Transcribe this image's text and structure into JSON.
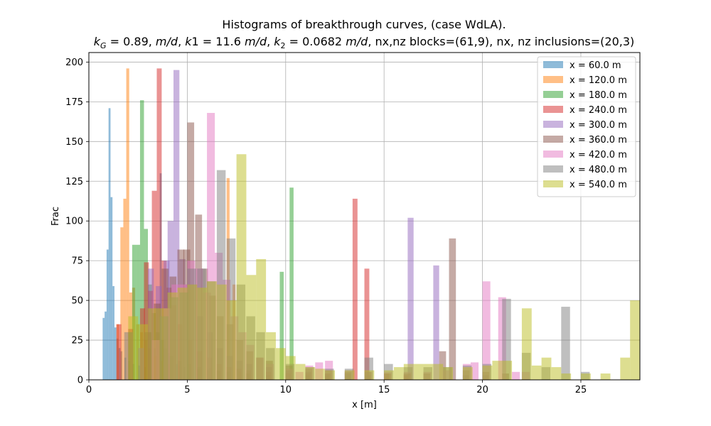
{
  "chart_data": {
    "type": "histogram",
    "title": "Histograms of breakthrough curves, (case WdLA).",
    "subtitle": "k_G = 0.89, m/d, k1 = 11.6 m/d, k_2 = 0.0682 m/d, nx,nz blocks=(61,9), nx, nz inclusions=(20,3)",
    "subtitle_parts": {
      "kG_sym": "k",
      "kG_sub": "G",
      "kG_val": " = 0.89, ",
      "md": "m/d",
      "sep1": ", ",
      "k1_sym": "k",
      "k1_val": "1 = 11.6 ",
      "sep2": ", ",
      "k2_sym": "k",
      "k2_sub": "2",
      "k2_val": " = 0.0682 ",
      "tail": ", nx,nz blocks=(61,9), nx, nz inclusions=(20,3)"
    },
    "xlabel": "x [m]",
    "ylabel": "Frac",
    "xlim": [
      0,
      28
    ],
    "ylim": [
      0,
      206
    ],
    "xticks": [
      0,
      5,
      10,
      15,
      20,
      25
    ],
    "yticks": [
      0,
      25,
      50,
      75,
      100,
      125,
      150,
      175,
      200
    ],
    "grid": true,
    "legend_position": "top-right",
    "alpha": 0.5,
    "series": [
      {
        "name": "x = 60.0 m",
        "color": "#1f77b4",
        "bin_width": 0.1,
        "bars": [
          [
            0.7,
            39
          ],
          [
            0.8,
            43
          ],
          [
            0.9,
            82
          ],
          [
            1.0,
            171
          ],
          [
            1.1,
            115
          ],
          [
            1.2,
            59
          ],
          [
            1.3,
            33
          ],
          [
            1.4,
            26
          ],
          [
            1.5,
            20
          ],
          [
            1.6,
            18
          ],
          [
            1.8,
            14
          ],
          [
            2.0,
            12
          ],
          [
            2.2,
            10
          ],
          [
            2.5,
            9
          ],
          [
            2.8,
            8
          ],
          [
            3.1,
            30
          ],
          [
            3.3,
            20
          ],
          [
            3.6,
            130
          ],
          [
            3.8,
            25
          ],
          [
            4.0,
            17
          ],
          [
            4.4,
            10
          ],
          [
            4.8,
            8
          ]
        ]
      },
      {
        "name": "x = 120.0 m",
        "color": "#ff7f0e",
        "bin_width": 0.15,
        "bars": [
          [
            1.4,
            35
          ],
          [
            1.6,
            96
          ],
          [
            1.75,
            114
          ],
          [
            1.9,
            196
          ],
          [
            2.05,
            55
          ],
          [
            2.2,
            58
          ],
          [
            2.4,
            35
          ],
          [
            2.6,
            30
          ],
          [
            2.8,
            25
          ],
          [
            3.0,
            20
          ],
          [
            3.3,
            15
          ],
          [
            3.6,
            12
          ],
          [
            4.0,
            10
          ],
          [
            4.5,
            9
          ],
          [
            5.0,
            8
          ],
          [
            5.5,
            7
          ],
          [
            6.0,
            6
          ],
          [
            6.5,
            6
          ],
          [
            7.0,
            127
          ],
          [
            7.3,
            60
          ],
          [
            7.6,
            5
          ],
          [
            8.0,
            4
          ]
        ]
      },
      {
        "name": "x = 180.0 m",
        "color": "#2ca02c",
        "bin_width": 0.2,
        "bars": [
          [
            2.0,
            30
          ],
          [
            2.2,
            85
          ],
          [
            2.4,
            85
          ],
          [
            2.6,
            176
          ],
          [
            2.8,
            95
          ],
          [
            3.0,
            60
          ],
          [
            3.2,
            42
          ],
          [
            3.4,
            30
          ],
          [
            3.6,
            25
          ],
          [
            3.8,
            20
          ],
          [
            4.1,
            15
          ],
          [
            4.5,
            12
          ],
          [
            5.0,
            10
          ],
          [
            5.5,
            8
          ],
          [
            6.0,
            7
          ],
          [
            6.5,
            6
          ],
          [
            7.0,
            5
          ],
          [
            8.0,
            4
          ],
          [
            9.0,
            3
          ],
          [
            9.7,
            68
          ],
          [
            10.2,
            121
          ],
          [
            11.0,
            3
          ],
          [
            12.0,
            3
          ]
        ]
      },
      {
        "name": "x = 240.0 m",
        "color": "#d62728",
        "bin_width": 0.25,
        "bars": [
          [
            1.4,
            35
          ],
          [
            2.0,
            32
          ],
          [
            2.6,
            45
          ],
          [
            2.8,
            74
          ],
          [
            3.0,
            56
          ],
          [
            3.2,
            119
          ],
          [
            3.45,
            196
          ],
          [
            3.7,
            75
          ],
          [
            3.95,
            58
          ],
          [
            4.2,
            47
          ],
          [
            4.5,
            35
          ],
          [
            5.0,
            25
          ],
          [
            5.5,
            18
          ],
          [
            6.0,
            14
          ],
          [
            6.5,
            10
          ],
          [
            7.0,
            8
          ],
          [
            7.5,
            7
          ],
          [
            8.0,
            6
          ],
          [
            9.0,
            5
          ],
          [
            10.0,
            4
          ],
          [
            11.0,
            4
          ],
          [
            12.0,
            4
          ],
          [
            13.4,
            114
          ],
          [
            14.0,
            70
          ],
          [
            15.0,
            4
          ],
          [
            16.0,
            3
          ]
        ]
      },
      {
        "name": "x = 300.0 m",
        "color": "#9467bd",
        "bin_width": 0.3,
        "bars": [
          [
            2.5,
            20
          ],
          [
            3.0,
            70
          ],
          [
            3.4,
            59
          ],
          [
            3.8,
            75
          ],
          [
            4.0,
            100
          ],
          [
            4.3,
            195
          ],
          [
            4.6,
            76
          ],
          [
            4.9,
            60
          ],
          [
            5.2,
            60
          ],
          [
            5.5,
            40
          ],
          [
            6.0,
            30
          ],
          [
            6.5,
            20
          ],
          [
            7.0,
            15
          ],
          [
            7.5,
            12
          ],
          [
            8.0,
            10
          ],
          [
            9.0,
            8
          ],
          [
            10.0,
            6
          ],
          [
            11.0,
            5
          ],
          [
            12.0,
            4
          ],
          [
            13.0,
            4
          ],
          [
            14.0,
            3
          ],
          [
            16.2,
            102
          ],
          [
            17.5,
            72
          ],
          [
            19.0,
            3
          ],
          [
            20.0,
            3
          ]
        ]
      },
      {
        "name": "x = 360.0 m",
        "color": "#8c564b",
        "bin_width": 0.35,
        "bars": [
          [
            2.8,
            30
          ],
          [
            3.3,
            48
          ],
          [
            3.7,
            70
          ],
          [
            4.1,
            65
          ],
          [
            4.5,
            82
          ],
          [
            4.8,
            82
          ],
          [
            5.0,
            162
          ],
          [
            5.4,
            104
          ],
          [
            5.7,
            70
          ],
          [
            6.1,
            53
          ],
          [
            6.5,
            40
          ],
          [
            7.0,
            35
          ],
          [
            7.5,
            25
          ],
          [
            8.0,
            18
          ],
          [
            8.5,
            14
          ],
          [
            9.0,
            12
          ],
          [
            10.0,
            9
          ],
          [
            11.0,
            7
          ],
          [
            12.0,
            6
          ],
          [
            13.0,
            5
          ],
          [
            14.0,
            5
          ],
          [
            15.0,
            4
          ],
          [
            16.0,
            4
          ],
          [
            17.0,
            4
          ],
          [
            17.8,
            18
          ],
          [
            18.3,
            89
          ],
          [
            19.0,
            6
          ],
          [
            20.0,
            5
          ],
          [
            21.0,
            4
          ]
        ]
      },
      {
        "name": "x = 420.0 m",
        "color": "#e377c2",
        "bin_width": 0.4,
        "bars": [
          [
            3.2,
            25
          ],
          [
            3.8,
            45
          ],
          [
            4.2,
            60
          ],
          [
            4.6,
            60
          ],
          [
            5.0,
            75
          ],
          [
            5.4,
            70
          ],
          [
            5.8,
            55
          ],
          [
            6.0,
            168
          ],
          [
            6.4,
            80
          ],
          [
            6.8,
            63
          ],
          [
            7.2,
            40
          ],
          [
            7.6,
            30
          ],
          [
            8.0,
            22
          ],
          [
            8.5,
            14
          ],
          [
            9.0,
            10
          ],
          [
            10.0,
            7
          ],
          [
            10.5,
            5
          ],
          [
            11.0,
            9
          ],
          [
            11.5,
            11
          ],
          [
            12.0,
            12
          ],
          [
            13.0,
            6
          ],
          [
            14.0,
            5
          ],
          [
            15.0,
            5
          ],
          [
            16.0,
            5
          ],
          [
            17.0,
            5
          ],
          [
            18.0,
            6
          ],
          [
            19.0,
            10
          ],
          [
            19.4,
            11
          ],
          [
            20.0,
            62
          ],
          [
            20.8,
            52
          ],
          [
            21.5,
            5
          ],
          [
            22.0,
            5
          ]
        ]
      },
      {
        "name": "x = 480.0 m",
        "color": "#7f7f7f",
        "bin_width": 0.45,
        "bars": [
          [
            1.8,
            30
          ],
          [
            3.6,
            40
          ],
          [
            4.1,
            52
          ],
          [
            4.6,
            55
          ],
          [
            5.0,
            70
          ],
          [
            5.5,
            70
          ],
          [
            6.0,
            62
          ],
          [
            6.5,
            132
          ],
          [
            7.0,
            89
          ],
          [
            7.5,
            60
          ],
          [
            8.0,
            40
          ],
          [
            8.5,
            30
          ],
          [
            9.0,
            20
          ],
          [
            10.0,
            10
          ],
          [
            11.0,
            8
          ],
          [
            12.0,
            7
          ],
          [
            13.0,
            7
          ],
          [
            14.0,
            14
          ],
          [
            15.0,
            10
          ],
          [
            16.0,
            8
          ],
          [
            17.0,
            8
          ],
          [
            18.0,
            8
          ],
          [
            19.0,
            9
          ],
          [
            20.0,
            10
          ],
          [
            21.0,
            51
          ],
          [
            22.0,
            17
          ],
          [
            23.0,
            8
          ],
          [
            24.0,
            46
          ],
          [
            25.0,
            5
          ]
        ]
      },
      {
        "name": "x = 540.0 m",
        "color": "#bcbd22",
        "bin_width": 0.5,
        "bars": [
          [
            2.0,
            40
          ],
          [
            2.5,
            35
          ],
          [
            3.0,
            45
          ],
          [
            3.5,
            45
          ],
          [
            4.0,
            55
          ],
          [
            4.5,
            58
          ],
          [
            5.0,
            60
          ],
          [
            5.5,
            58
          ],
          [
            6.0,
            62
          ],
          [
            6.5,
            60
          ],
          [
            7.0,
            50
          ],
          [
            7.5,
            142
          ],
          [
            8.0,
            66
          ],
          [
            8.5,
            76
          ],
          [
            9.0,
            30
          ],
          [
            9.5,
            20
          ],
          [
            10.0,
            15
          ],
          [
            10.5,
            10
          ],
          [
            11.0,
            8
          ],
          [
            11.5,
            7
          ],
          [
            12.0,
            6
          ],
          [
            13.0,
            6
          ],
          [
            14.0,
            6
          ],
          [
            15.0,
            6
          ],
          [
            15.5,
            8
          ],
          [
            16.0,
            10
          ],
          [
            16.5,
            10
          ],
          [
            17.0,
            10
          ],
          [
            17.5,
            10
          ],
          [
            18.0,
            8
          ],
          [
            19.0,
            8
          ],
          [
            20.0,
            9
          ],
          [
            20.5,
            12
          ],
          [
            21.0,
            12
          ],
          [
            22.0,
            45
          ],
          [
            22.5,
            9
          ],
          [
            23.0,
            14
          ],
          [
            23.5,
            8
          ],
          [
            24.0,
            4
          ],
          [
            25.0,
            4
          ],
          [
            26.0,
            4
          ],
          [
            27.0,
            14
          ],
          [
            27.5,
            50
          ]
        ]
      }
    ]
  }
}
